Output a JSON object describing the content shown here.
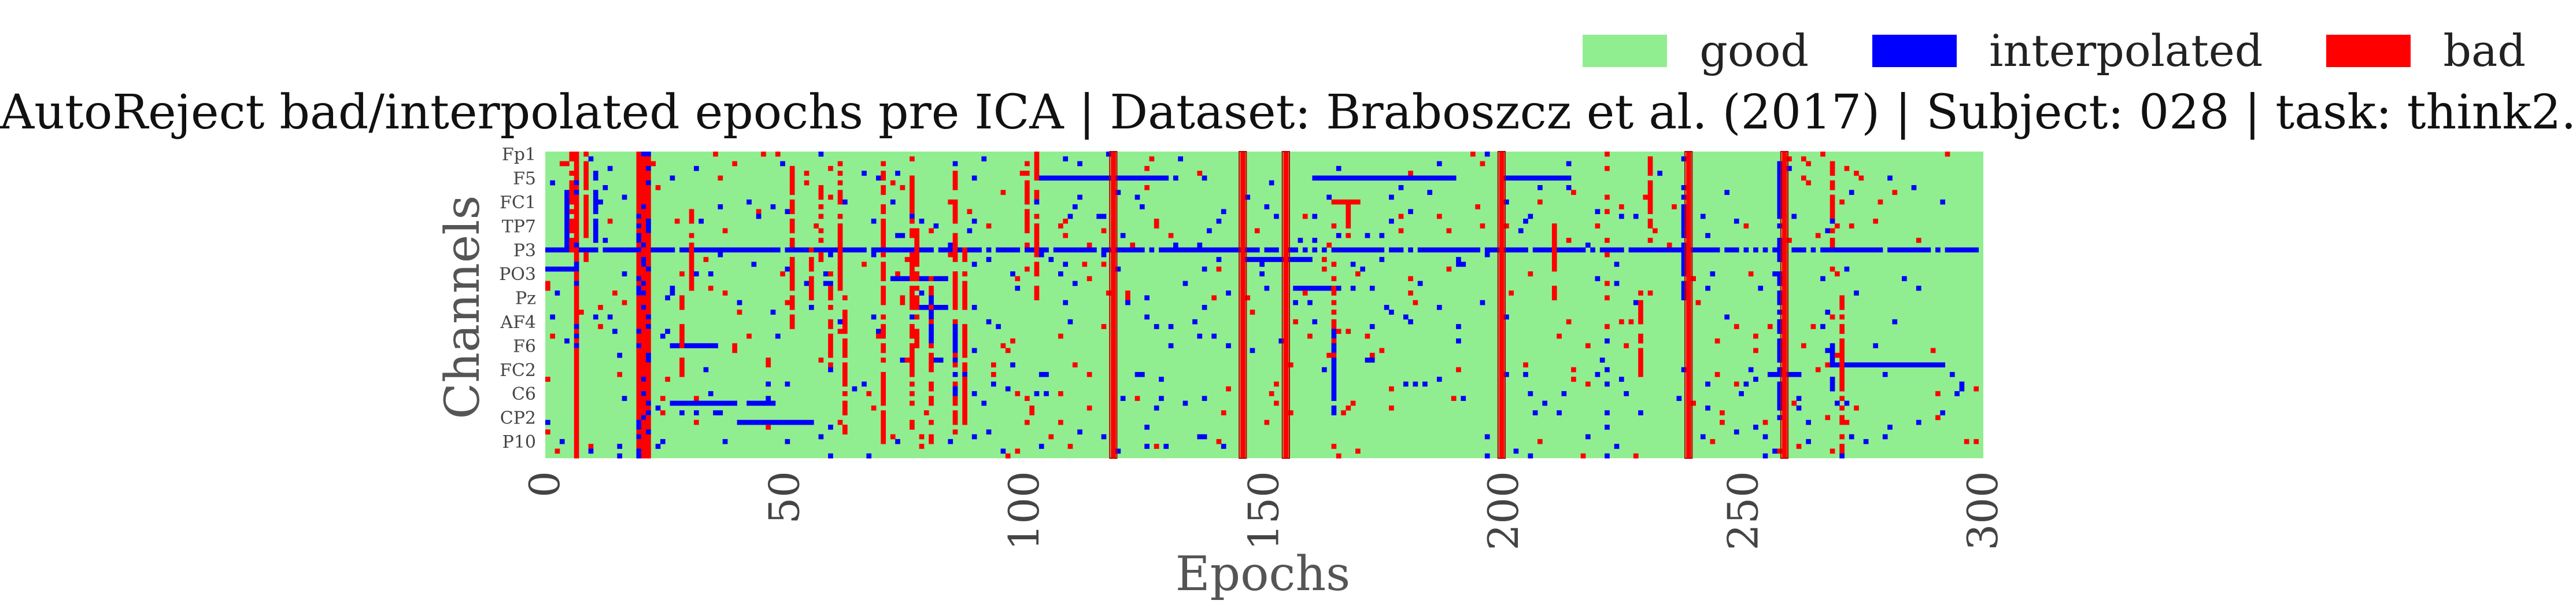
{
  "chart_data": {
    "type": "heatmap",
    "title": "AutoReject bad/interpolated epochs pre ICA | Dataset: Braboszcz et al. (2017) | Subject: 028 | task: think2.",
    "xlabel": "Epochs",
    "ylabel": "Channels",
    "xlim": [
      0,
      300
    ],
    "x_ticks": [
      0,
      50,
      100,
      150,
      200,
      250,
      300
    ],
    "n_epochs": 300,
    "n_channels": 64,
    "y_tick_labels": [
      "Fp1",
      "F5",
      "FC1",
      "TP7",
      "P3",
      "PO3",
      "Pz",
      "AF4",
      "F6",
      "FC2",
      "C6",
      "CP2",
      "P10"
    ],
    "y_tick_channel_index": [
      0,
      5,
      10,
      15,
      20,
      25,
      30,
      35,
      40,
      45,
      50,
      55,
      60
    ],
    "legend": [
      {
        "label": "good",
        "color": "#90ee90"
      },
      {
        "label": "interpolated",
        "color": "#0000ff"
      },
      {
        "label": "bad",
        "color": "#ff0000"
      }
    ],
    "legend_position": "top-right",
    "colors": {
      "good": "#90ee90",
      "interpolated": "#0000ff",
      "bad": "#ff0000"
    },
    "bad_epochs": [
      118,
      145,
      154,
      199,
      238,
      258
    ],
    "mostly_bad_epochs": [
      6,
      19,
      20,
      21
    ],
    "row_bands": [
      {
        "channel": 20,
        "state": "interpolated",
        "epoch_range": [
          0,
          300
        ]
      }
    ],
    "column_segments": [
      {
        "epoch": 5,
        "channels": [
          0,
          20
        ],
        "state": "bad"
      },
      {
        "epoch": 8,
        "channels": [
          2,
          22
        ],
        "state": "bad"
      },
      {
        "epoch": 10,
        "channels": [
          4,
          18
        ],
        "state": "interpolated"
      },
      {
        "epoch": 28,
        "channels": [
          30,
          46
        ],
        "state": "bad"
      },
      {
        "epoch": 30,
        "channels": [
          12,
          28
        ],
        "state": "bad"
      },
      {
        "epoch": 51,
        "channels": [
          0,
          36
        ],
        "state": "bad"
      },
      {
        "epoch": 55,
        "channels": [
          20,
          32
        ],
        "state": "bad"
      },
      {
        "epoch": 57,
        "channels": [
          6,
          22
        ],
        "state": "bad"
      },
      {
        "epoch": 59,
        "channels": [
          24,
          44
        ],
        "state": "bad"
      },
      {
        "epoch": 61,
        "channels": [
          2,
          28
        ],
        "state": "bad"
      },
      {
        "epoch": 62,
        "channels": [
          30,
          58
        ],
        "state": "bad"
      },
      {
        "epoch": 70,
        "channels": [
          2,
          60
        ],
        "state": "bad"
      },
      {
        "epoch": 76,
        "channels": [
          0,
          58
        ],
        "state": "bad"
      },
      {
        "epoch": 77,
        "channels": [
          14,
          40
        ],
        "state": "bad"
      },
      {
        "epoch": 80,
        "channels": [
          26,
          60
        ],
        "state": "bad"
      },
      {
        "epoch": 85,
        "channels": [
          4,
          58
        ],
        "state": "bad"
      },
      {
        "epoch": 87,
        "channels": [
          18,
          56
        ],
        "state": "bad"
      },
      {
        "epoch": 100,
        "channels": [
          2,
          24
        ],
        "state": "bad"
      },
      {
        "epoch": 102,
        "channels": [
          0,
          30
        ],
        "state": "bad"
      },
      {
        "epoch": 164,
        "channels": [
          26,
          50
        ],
        "state": "bad"
      },
      {
        "epoch": 167,
        "channels": [
          10,
          18
        ],
        "state": "bad"
      },
      {
        "epoch": 210,
        "channels": [
          14,
          30
        ],
        "state": "bad"
      },
      {
        "epoch": 228,
        "channels": [
          28,
          46
        ],
        "state": "bad"
      },
      {
        "epoch": 230,
        "channels": [
          2,
          18
        ],
        "state": "bad"
      },
      {
        "epoch": 268,
        "channels": [
          2,
          20
        ],
        "state": "bad"
      },
      {
        "epoch": 270,
        "channels": [
          30,
          62
        ],
        "state": "bad"
      },
      {
        "epoch": 4,
        "channels": [
          8,
          20
        ],
        "state": "interpolated"
      },
      {
        "epoch": 80,
        "channels": [
          30,
          40
        ],
        "state": "interpolated"
      },
      {
        "epoch": 85,
        "channels": [
          36,
          50
        ],
        "state": "interpolated"
      },
      {
        "epoch": 164,
        "channels": [
          36,
          54
        ],
        "state": "interpolated"
      },
      {
        "epoch": 237,
        "channels": [
          6,
          30
        ],
        "state": "interpolated"
      },
      {
        "epoch": 257,
        "channels": [
          0,
          56
        ],
        "state": "interpolated"
      },
      {
        "epoch": 268,
        "channels": [
          40,
          50
        ],
        "state": "interpolated"
      }
    ],
    "row_segments": [
      {
        "channel": 5,
        "epochs": [
          103,
          130
        ],
        "state": "interpolated"
      },
      {
        "channel": 5,
        "epochs": [
          160,
          190
        ],
        "state": "interpolated"
      },
      {
        "channel": 5,
        "epochs": [
          200,
          214
        ],
        "state": "interpolated"
      },
      {
        "channel": 40,
        "epochs": [
          26,
          36
        ],
        "state": "interpolated"
      },
      {
        "channel": 52,
        "epochs": [
          26,
          40
        ],
        "state": "interpolated"
      },
      {
        "channel": 52,
        "epochs": [
          42,
          48
        ],
        "state": "interpolated"
      },
      {
        "channel": 26,
        "epochs": [
          72,
          84
        ],
        "state": "interpolated"
      },
      {
        "channel": 32,
        "epochs": [
          76,
          84
        ],
        "state": "interpolated"
      },
      {
        "channel": 24,
        "epochs": [
          0,
          6
        ],
        "state": "interpolated"
      },
      {
        "channel": 46,
        "epochs": [
          255,
          262
        ],
        "state": "interpolated"
      },
      {
        "channel": 44,
        "epochs": [
          268,
          292
        ],
        "state": "interpolated"
      },
      {
        "channel": 22,
        "epochs": [
          145,
          160
        ],
        "state": "interpolated"
      },
      {
        "channel": 28,
        "epochs": [
          156,
          166
        ],
        "state": "interpolated"
      },
      {
        "channel": 10,
        "epochs": [
          164,
          170
        ],
        "state": "bad"
      },
      {
        "channel": 56,
        "epochs": [
          40,
          56
        ],
        "state": "interpolated"
      }
    ],
    "scatter_density": 0.035,
    "scatter_seed": 28
  }
}
